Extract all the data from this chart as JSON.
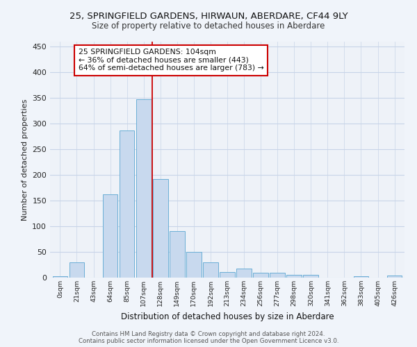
{
  "title": "25, SPRINGFIELD GARDENS, HIRWAUN, ABERDARE, CF44 9LY",
  "subtitle": "Size of property relative to detached houses in Aberdare",
  "xlabel": "Distribution of detached houses by size in Aberdare",
  "ylabel": "Number of detached properties",
  "bin_labels": [
    "0sqm",
    "21sqm",
    "43sqm",
    "64sqm",
    "85sqm",
    "107sqm",
    "128sqm",
    "149sqm",
    "170sqm",
    "192sqm",
    "213sqm",
    "234sqm",
    "256sqm",
    "277sqm",
    "298sqm",
    "320sqm",
    "341sqm",
    "362sqm",
    "383sqm",
    "405sqm",
    "426sqm"
  ],
  "bar_heights": [
    3,
    30,
    0,
    163,
    287,
    348,
    192,
    90,
    50,
    30,
    11,
    17,
    10,
    10,
    5,
    5,
    0,
    0,
    3,
    0,
    4
  ],
  "bar_color": "#c8d9ee",
  "bar_edge_color": "#6aaed6",
  "vline_x": 5.5,
  "vline_color": "#cc0000",
  "annotation_text": "25 SPRINGFIELD GARDENS: 104sqm\n← 36% of detached houses are smaller (443)\n64% of semi-detached houses are larger (783) →",
  "annotation_box_color": "#ffffff",
  "annotation_box_edge": "#cc0000",
  "ylim": [
    0,
    460
  ],
  "yticks": [
    0,
    50,
    100,
    150,
    200,
    250,
    300,
    350,
    400,
    450
  ],
  "background_color": "#f0f4fa",
  "plot_bg_color": "#eef2f8",
  "grid_color": "#c8d4e8",
  "footer_text": "Contains HM Land Registry data © Crown copyright and database right 2024.\nContains public sector information licensed under the Open Government Licence v3.0."
}
